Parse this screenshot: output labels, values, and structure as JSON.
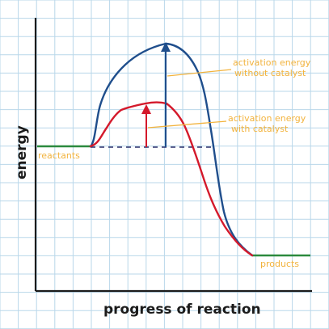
{
  "axes": {
    "y_label": "energy",
    "x_label": "progress of reaction"
  },
  "labels": {
    "reactants": "reactants",
    "products": "products",
    "uncatalyzed_line1": "activation energy",
    "uncatalyzed_line2": "without catalyst",
    "catalyzed_line1": "activation energy",
    "catalyzed_line2": "with catalyst"
  },
  "colors": {
    "grid": "#b9d7ea",
    "axis": "#1b1b1b",
    "uncatalyzed": "#1f4e8c",
    "catalyzed": "#d4192b",
    "levels": "#2b8a3e",
    "annotation": "#f2b33d",
    "baseline_dash": "#2a2f6b"
  }
}
